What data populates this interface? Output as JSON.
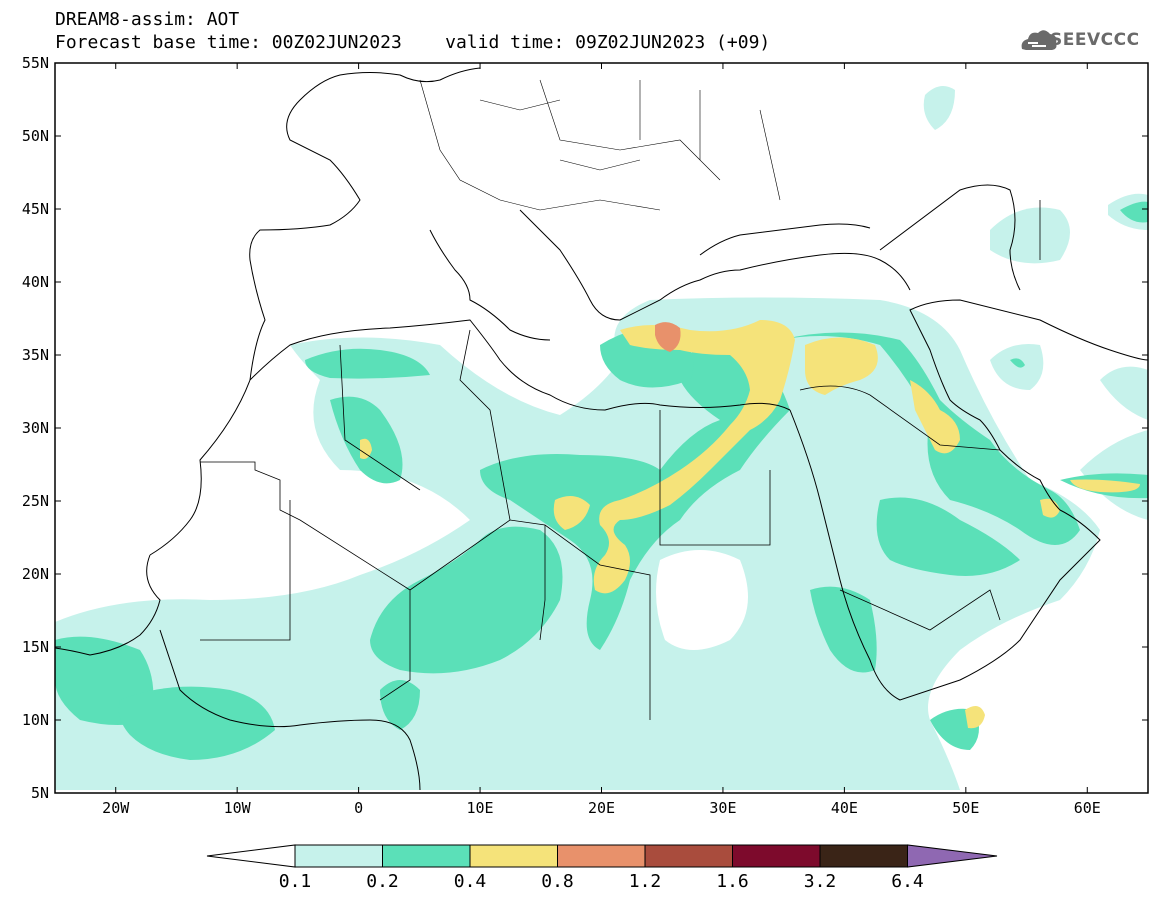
{
  "title": {
    "line1": "DREAM8-assim: AOT",
    "line2": "Forecast base time: 00Z02JUN2023    valid time: 09Z02JUN2023 (+09)"
  },
  "logo": {
    "text": "SEEVCCC"
  },
  "map": {
    "projection": "lat-lon",
    "lon_range": [
      -25,
      65
    ],
    "lat_range": [
      5,
      55
    ],
    "lon_ticks": [
      {
        "lon": -20,
        "label": "20W"
      },
      {
        "lon": -10,
        "label": "10W"
      },
      {
        "lon": 0,
        "label": "0"
      },
      {
        "lon": 10,
        "label": "10E"
      },
      {
        "lon": 20,
        "label": "20E"
      },
      {
        "lon": 30,
        "label": "30E"
      },
      {
        "lon": 40,
        "label": "40E"
      },
      {
        "lon": 50,
        "label": "50E"
      },
      {
        "lon": 60,
        "label": "60E"
      }
    ],
    "lat_ticks": [
      {
        "lat": 5,
        "label": "5N"
      },
      {
        "lat": 10,
        "label": "10N"
      },
      {
        "lat": 15,
        "label": "15N"
      },
      {
        "lat": 20,
        "label": "20N"
      },
      {
        "lat": 25,
        "label": "25N"
      },
      {
        "lat": 30,
        "label": "30N"
      },
      {
        "lat": 35,
        "label": "35N"
      },
      {
        "lat": 40,
        "label": "40N"
      },
      {
        "lat": 45,
        "label": "45N"
      },
      {
        "lat": 50,
        "label": "50N"
      },
      {
        "lat": 55,
        "label": "55N"
      }
    ]
  },
  "colorbar": {
    "colors": [
      "#ffffff",
      "#c6f2eb",
      "#5be0b8",
      "#f5e37a",
      "#e8916b",
      "#a94c3d",
      "#7d0a2c",
      "#3a2417",
      "#8f68b2"
    ],
    "labels": [
      "0.1",
      "0.2",
      "0.4",
      "0.8",
      "1.2",
      "1.6",
      "3.2",
      "6.4"
    ]
  }
}
